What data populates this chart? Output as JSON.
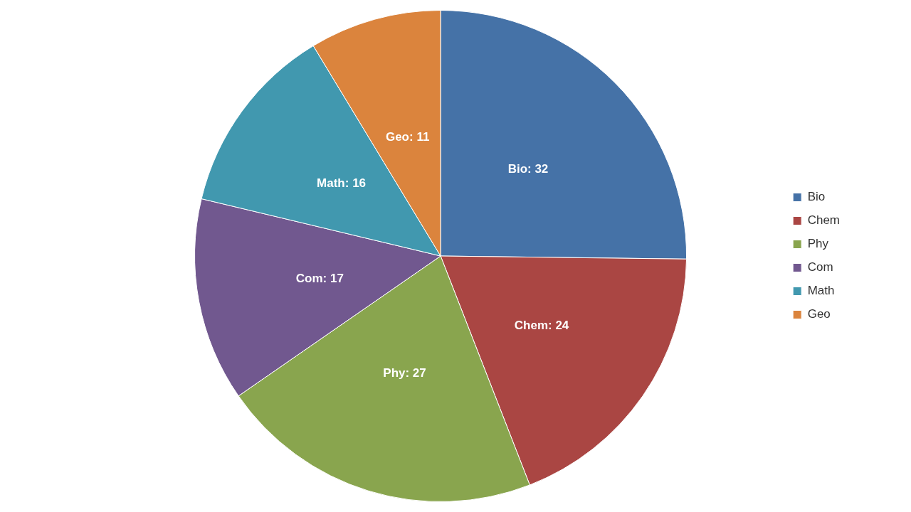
{
  "chart_data": {
    "type": "pie",
    "categories": [
      "Bio",
      "Chem",
      "Phy",
      "Com",
      "Math",
      "Geo"
    ],
    "values": [
      32,
      24,
      27,
      17,
      16,
      11
    ],
    "colors": [
      "#4572a7",
      "#aa4643",
      "#89a54e",
      "#71588f",
      "#4198af",
      "#db843d"
    ],
    "value_labels": [
      "Bio: 32",
      "Chem: 24",
      "Phy: 27",
      "Com: 17",
      "Math: 16",
      "Geo: 11"
    ],
    "legend": "right"
  }
}
